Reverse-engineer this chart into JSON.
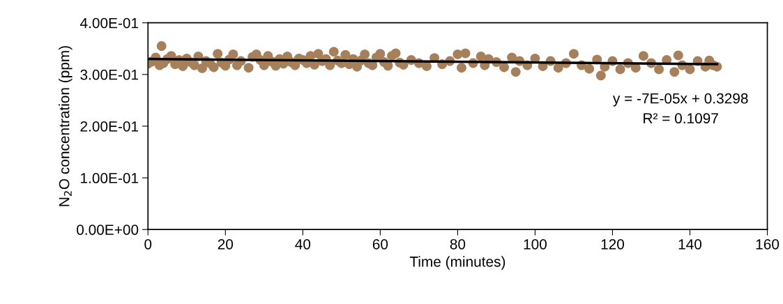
{
  "chart_data": {
    "type": "scatter",
    "xlabel": "Time (minutes)",
    "ylabel": "N$_{2}$O concentration (ppm)",
    "xlim": [
      0,
      160
    ],
    "xticks": [
      0,
      20,
      40,
      60,
      80,
      100,
      120,
      140,
      160
    ],
    "ylim": [
      0,
      0.4
    ],
    "yticks": [
      {
        "value": 0,
        "label": "0.00E+00"
      },
      {
        "value": 0.1,
        "label": "1.00E-01"
      },
      {
        "value": 0.2,
        "label": "2.00E-01"
      },
      {
        "value": 0.3,
        "label": "3.00E-01"
      },
      {
        "value": 0.4,
        "label": "4.00E-01"
      }
    ],
    "grid": false,
    "annotations": [
      "y = -7E-05x + 0.3298\nR² = 0.1097"
    ],
    "series": [
      {
        "marker": "circle",
        "color": "#a67f5b",
        "x": [
          0,
          1,
          2,
          3,
          3.5,
          4,
          5,
          6,
          7,
          8,
          9,
          10,
          11,
          12,
          13,
          14,
          15,
          16,
          17,
          18,
          19,
          20,
          21,
          22,
          23,
          24,
          26,
          27,
          28,
          29,
          30,
          31,
          32,
          33,
          34,
          35,
          36,
          37,
          38,
          39,
          40,
          41,
          42,
          43,
          44,
          45,
          46,
          47,
          48,
          49,
          50,
          51,
          52,
          53,
          54,
          55,
          56,
          57,
          58,
          59,
          60,
          61,
          62,
          63,
          64,
          65,
          66,
          68,
          70,
          72,
          74,
          76,
          78,
          80,
          81,
          82,
          84,
          86,
          87,
          88,
          90,
          92,
          94,
          95,
          96,
          98,
          100,
          102,
          104,
          106,
          108,
          110,
          112,
          114,
          116,
          117,
          118,
          120,
          122,
          124,
          126,
          128,
          130,
          132,
          134,
          136,
          137,
          138,
          140,
          142,
          144,
          145,
          146,
          147
        ],
        "values": [
          0.321,
          0.325,
          0.333,
          0.318,
          0.355,
          0.322,
          0.33,
          0.336,
          0.32,
          0.328,
          0.316,
          0.331,
          0.324,
          0.318,
          0.335,
          0.312,
          0.326,
          0.322,
          0.314,
          0.34,
          0.323,
          0.317,
          0.329,
          0.339,
          0.318,
          0.326,
          0.313,
          0.334,
          0.339,
          0.328,
          0.318,
          0.336,
          0.325,
          0.317,
          0.33,
          0.321,
          0.335,
          0.324,
          0.318,
          0.331,
          0.328,
          0.322,
          0.336,
          0.319,
          0.34,
          0.326,
          0.33,
          0.318,
          0.344,
          0.327,
          0.322,
          0.338,
          0.32,
          0.33,
          0.315,
          0.327,
          0.339,
          0.322,
          0.318,
          0.333,
          0.34,
          0.324,
          0.317,
          0.336,
          0.341,
          0.323,
          0.319,
          0.328,
          0.322,
          0.316,
          0.332,
          0.32,
          0.326,
          0.339,
          0.313,
          0.341,
          0.322,
          0.335,
          0.318,
          0.33,
          0.324,
          0.314,
          0.333,
          0.305,
          0.326,
          0.318,
          0.331,
          0.316,
          0.326,
          0.313,
          0.322,
          0.34,
          0.318,
          0.311,
          0.329,
          0.298,
          0.315,
          0.326,
          0.31,
          0.322,
          0.313,
          0.336,
          0.322,
          0.31,
          0.328,
          0.305,
          0.337,
          0.318,
          0.31,
          0.326,
          0.315,
          0.327,
          0.318,
          0.315
        ]
      },
      {
        "type": "line",
        "color": "#000000",
        "x": [
          0,
          147
        ],
        "values": [
          0.33,
          0.32
        ]
      }
    ]
  }
}
